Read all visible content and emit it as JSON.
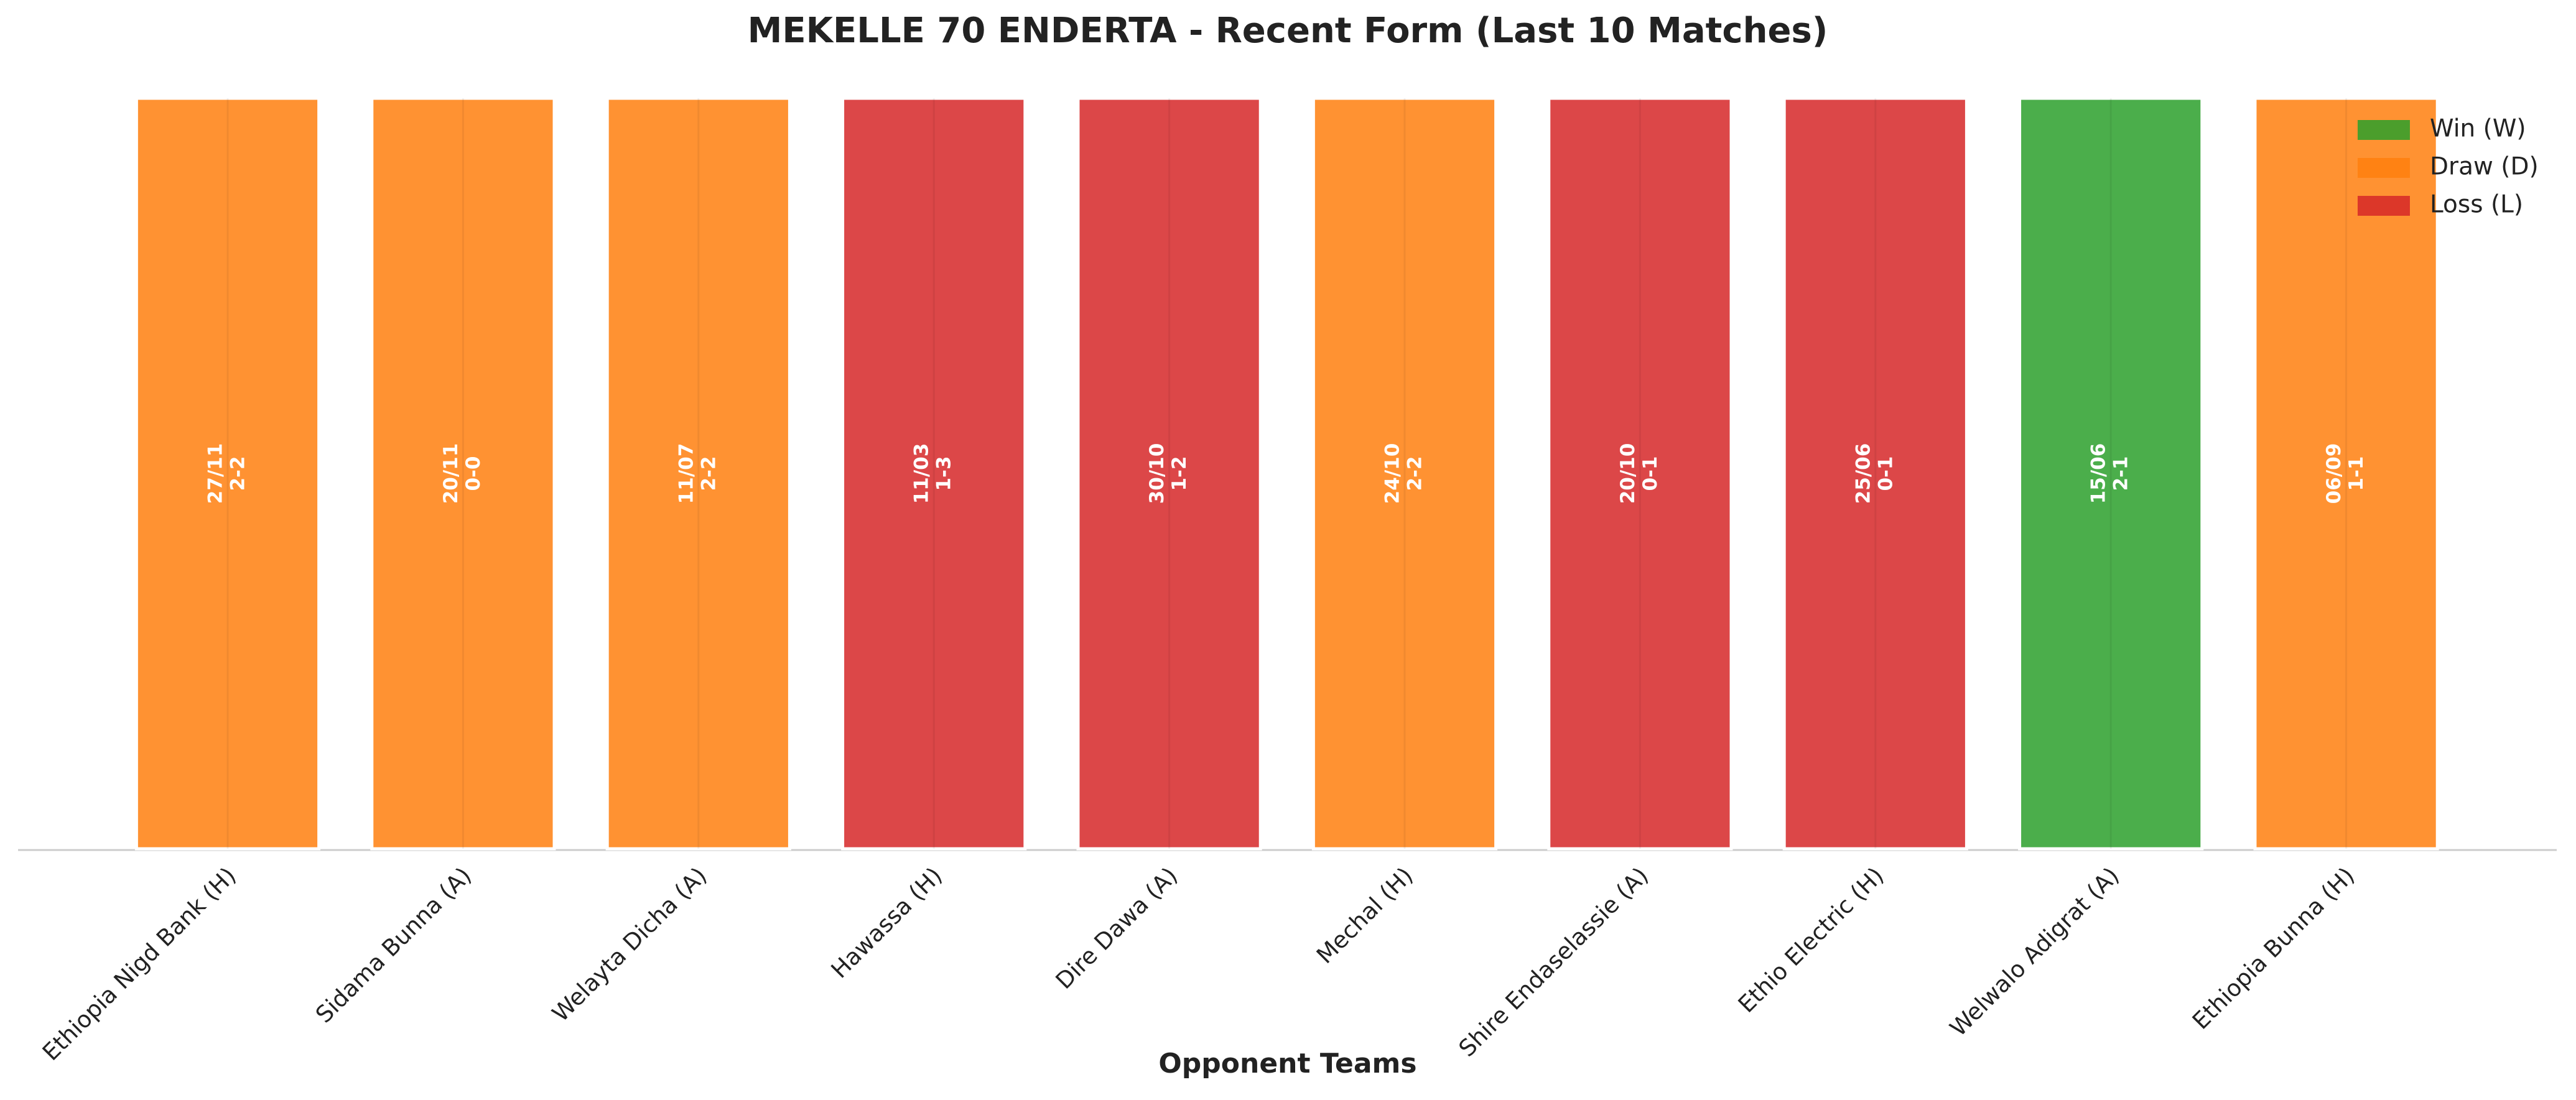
{
  "chart_data": {
    "type": "bar",
    "title": "MEKELLE 70 ENDERTA - Recent Form (Last 10 Matches)",
    "x_label": "Opponent Teams",
    "categories": [
      "Ethiopia Nigd Bank (H)",
      "Sidama Bunna (A)",
      "Welayta Dicha (A)",
      "Hawassa (H)",
      "Dire Dawa (A)",
      "Mechal (H)",
      "Shire Endaselassie (A)",
      "Ethio Electric (H)",
      "Welwalo Adigrat (A)",
      "Ethiopia Bunna (H)"
    ],
    "values": [
      1,
      1,
      1,
      1,
      1,
      1,
      1,
      1,
      1,
      1
    ],
    "ylim": [
      0,
      1
    ],
    "dates": [
      "27/11",
      "20/11",
      "11/07",
      "11/03",
      "30/10",
      "24/10",
      "20/10",
      "25/06",
      "15/06",
      "06/09"
    ],
    "scores": [
      "2-2",
      "0-0",
      "2-2",
      "1-3",
      "1-2",
      "2-2",
      "0-1",
      "0-1",
      "2-1",
      "1-1"
    ],
    "colors": [
      "#ff7f0e",
      "#ff7f0e",
      "#ff7f0e",
      "#d62728",
      "#d62728",
      "#ff7f0e",
      "#d62728",
      "#d62728",
      "#2ca02c",
      "#ff7f0e"
    ],
    "legend": [
      {
        "name": "Win (W)",
        "color": "#2ca02c"
      },
      {
        "name": "Draw (D)",
        "color": "#ff7f0e"
      },
      {
        "name": "Loss (L)",
        "color": "#d62728"
      }
    ],
    "legend_position": "upper right"
  }
}
